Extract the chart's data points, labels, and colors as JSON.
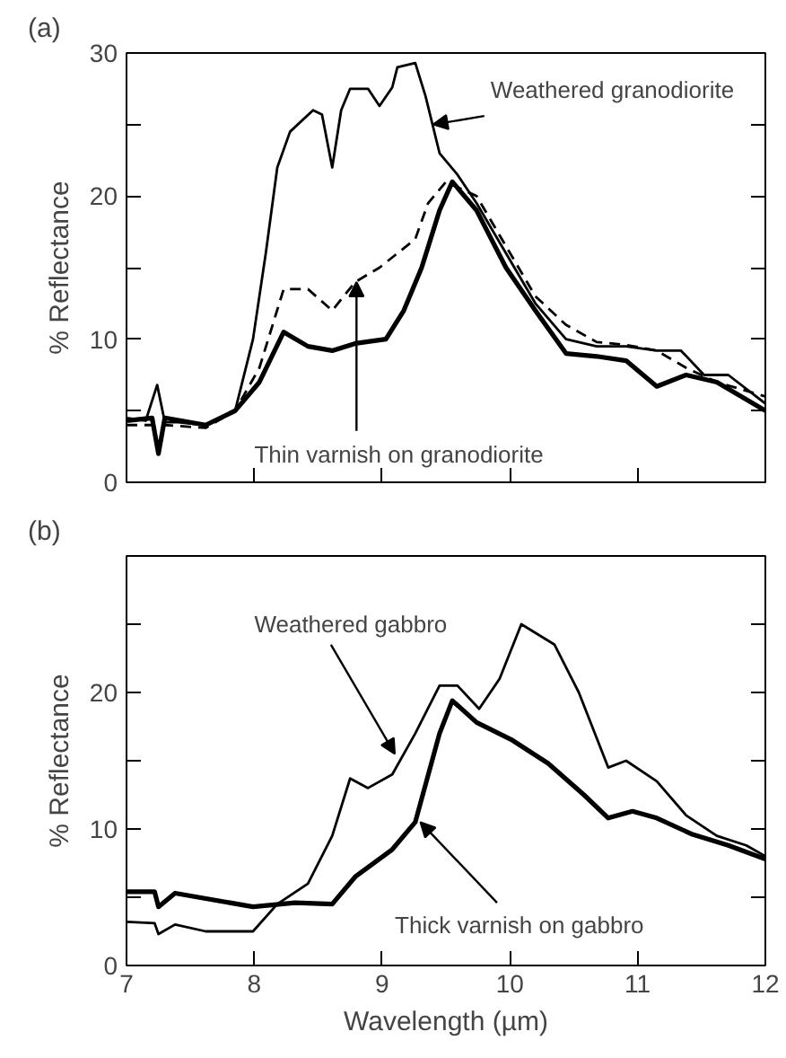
{
  "chart_data": [
    {
      "type": "line",
      "title": "(a)",
      "ylabel": "% Reflectance",
      "xlim": [
        7,
        12
      ],
      "xticks": [
        {
          "value": 7,
          "label": null
        },
        {
          "value": 8,
          "label": null
        },
        {
          "value": 9,
          "label": null
        },
        {
          "value": 10,
          "label": null
        },
        {
          "value": 11,
          "label": null
        },
        {
          "value": 12,
          "label": null
        }
      ],
      "ylim": [
        0,
        30
      ],
      "yticks": [
        0,
        {
          "value": 5,
          "label": null
        },
        10,
        {
          "value": 15,
          "label": null
        },
        20,
        {
          "value": 25,
          "label": null
        },
        30
      ],
      "tick_labels": "y",
      "grid": false,
      "series": [
        {
          "color": "#000000",
          "line_style": "solid",
          "x": [
            7,
            7.15,
            7.24,
            7.3,
            7.4,
            7.62,
            7.85,
            7.99,
            8.09,
            8.18,
            8.28,
            8.46,
            8.53,
            8.61,
            8.68,
            8.75,
            8.89,
            8.98,
            9.08,
            9.12,
            9.26,
            9.34,
            9.45,
            9.59,
            9.74,
            9.97,
            10.2,
            10.44,
            10.68,
            10.91,
            11.15,
            11.34,
            11.52,
            11.71,
            12
          ],
          "values": [
            4.5,
            4.3,
            6.8,
            4.2,
            4.2,
            4,
            5,
            10,
            16,
            22,
            24.5,
            26,
            25.7,
            22,
            26,
            27.5,
            27.5,
            26.3,
            27.6,
            29,
            29.3,
            27,
            23,
            21.5,
            19.5,
            16,
            12.5,
            10,
            9.5,
            9.5,
            9.2,
            9.2,
            7.5,
            7.5,
            5.5
          ]
        },
        {
          "color": "#000000",
          "line_style": "dashed",
          "x": [
            7,
            7.3,
            7.62,
            7.85,
            8.04,
            8.23,
            8.42,
            8.61,
            8.79,
            8.98,
            9.26,
            9.36,
            9.5,
            9.74,
            9.97,
            10.2,
            10.44,
            10.68,
            10.91,
            11.15,
            11.38,
            11.62,
            12
          ],
          "values": [
            4,
            4,
            3.8,
            5,
            8,
            13.5,
            13.5,
            12,
            14,
            15,
            17,
            19.5,
            21,
            20,
            16.5,
            13,
            11,
            9.8,
            9.6,
            9.2,
            8,
            7,
            6
          ]
        },
        {
          "color": "#000000",
          "line_style": "solid",
          "x": [
            7,
            7.2,
            7.25,
            7.3,
            7.62,
            7.85,
            8.04,
            8.23,
            8.42,
            8.61,
            8.79,
            9.03,
            9.17,
            9.31,
            9.45,
            9.55,
            9.74,
            9.97,
            10.2,
            10.44,
            10.68,
            10.91,
            11.15,
            11.38,
            11.62,
            12
          ],
          "values": [
            4.3,
            4.5,
            2,
            4.5,
            4,
            5,
            7,
            10.5,
            9.5,
            9.2,
            9.7,
            10,
            12,
            15,
            19,
            21,
            19,
            15,
            12,
            9,
            8.8,
            8.5,
            6.7,
            7.5,
            7,
            5
          ]
        }
      ],
      "annotations": [
        {
          "text": "Weathered granodiorite",
          "x": 9.4,
          "y": 25
        },
        {
          "text": "Thin varnish on granodiorite",
          "x": 8.8,
          "y": 14
        }
      ]
    },
    {
      "type": "line",
      "title": "(b)",
      "xlabel": "Wavelength (µm)",
      "ylabel": "% Reflectance",
      "xlim": [
        7,
        12
      ],
      "xticks": [
        7,
        8,
        9,
        10,
        11,
        12
      ],
      "ylim": [
        0,
        30
      ],
      "yticks": [
        0,
        {
          "value": 5,
          "label": null
        },
        10,
        {
          "value": 15,
          "label": null
        },
        20,
        {
          "value": 25,
          "label": null
        }
      ],
      "grid": false,
      "series": [
        {
          "color": "#000000",
          "line_style": "solid",
          "x": [
            7,
            7.22,
            7.25,
            7.38,
            7.62,
            7.99,
            8.18,
            8.42,
            8.61,
            8.75,
            8.89,
            9.08,
            9.26,
            9.45,
            9.59,
            9.76,
            9.92,
            10.09,
            10.35,
            10.54,
            10.77,
            10.91,
            11.15,
            11.38,
            11.62,
            11.85,
            12
          ],
          "values": [
            3.2,
            3.1,
            2.3,
            3,
            2.5,
            2.5,
            4.5,
            6,
            9.5,
            13.7,
            13,
            14,
            17,
            20.5,
            20.5,
            18.8,
            21,
            25,
            23.5,
            20,
            14.5,
            15,
            13.5,
            11,
            9.5,
            8.8,
            8
          ]
        },
        {
          "color": "#000000",
          "line_style": "solid",
          "x": [
            7,
            7.22,
            7.25,
            7.38,
            7.99,
            8.32,
            8.61,
            8.79,
            9.08,
            9.26,
            9.45,
            9.55,
            9.74,
            10.02,
            10.3,
            10.58,
            10.77,
            10.96,
            11.15,
            11.43,
            11.71,
            12
          ],
          "values": [
            5.4,
            5.4,
            4.3,
            5.3,
            4.3,
            4.6,
            4.5,
            6.5,
            8.5,
            10.5,
            17,
            19.4,
            17.8,
            16.5,
            14.8,
            12.5,
            10.8,
            11.3,
            10.8,
            9.6,
            8.8,
            7.8
          ]
        }
      ],
      "annotations": [
        {
          "text": "Weathered gabbro",
          "x": 9.1,
          "y": 15.5
        },
        {
          "text": "Thick varnish on gabbro",
          "x": 9.3,
          "y": 10.5
        }
      ]
    }
  ]
}
